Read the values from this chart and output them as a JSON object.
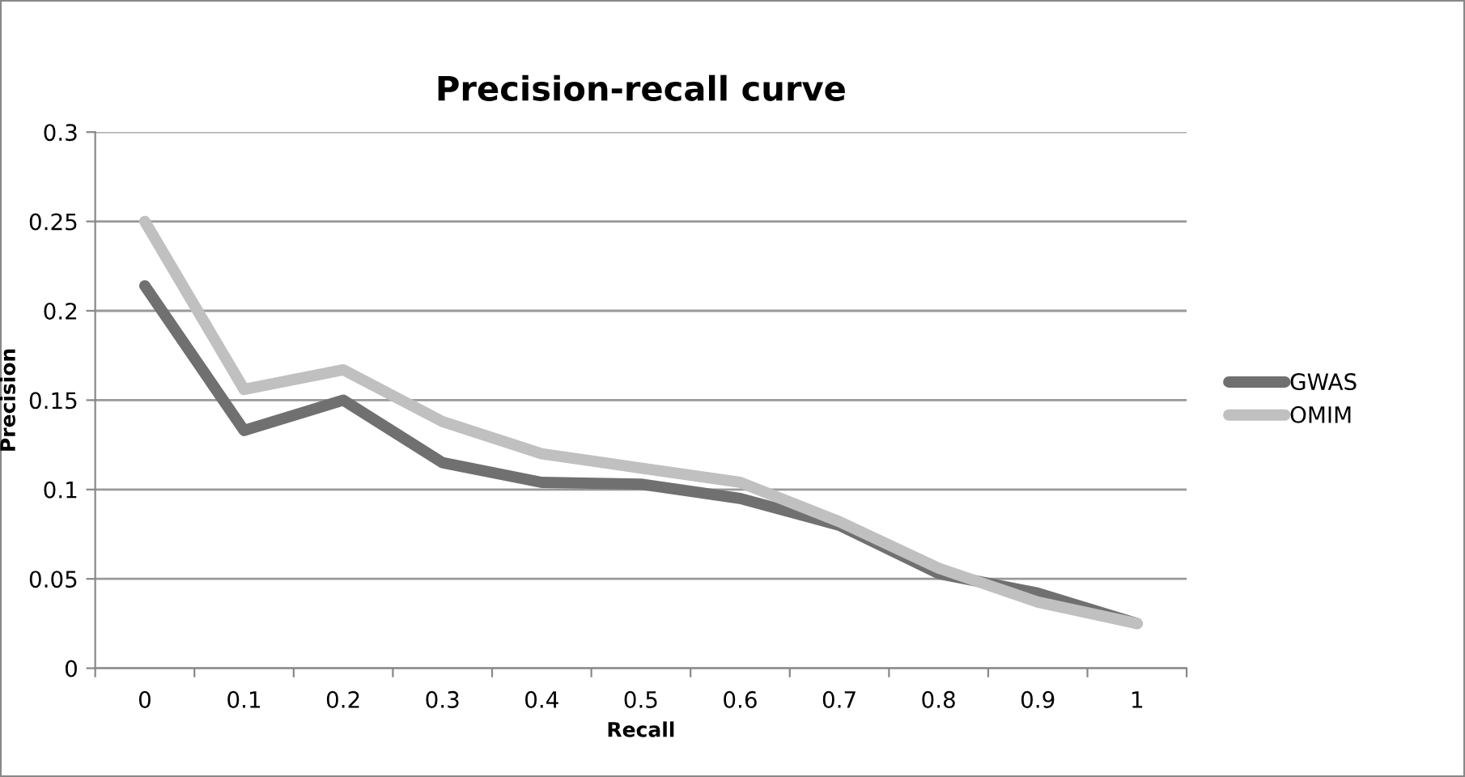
{
  "chart_data": {
    "type": "line",
    "title": "Precision-recall curve",
    "xlabel": "Recall",
    "ylabel": "Precision",
    "categories": [
      "0",
      "0.1",
      "0.2",
      "0.3",
      "0.4",
      "0.5",
      "0.6",
      "0.7",
      "0.8",
      "0.9",
      "1"
    ],
    "series": [
      {
        "name": "GWAS",
        "color": "#707070",
        "values": [
          0.214,
          0.133,
          0.15,
          0.115,
          0.104,
          0.103,
          0.095,
          0.08,
          0.053,
          0.042,
          0.025
        ]
      },
      {
        "name": "OMIM",
        "color": "#c0c0c0",
        "values": [
          0.25,
          0.156,
          0.167,
          0.138,
          0.12,
          0.112,
          0.104,
          0.082,
          0.056,
          0.037,
          0.025
        ]
      }
    ],
    "ylim": [
      0,
      0.3
    ],
    "yticks": [
      0,
      0.05,
      0.1,
      0.15,
      0.2,
      0.25,
      0.3
    ],
    "grid": "y",
    "legend": "right",
    "marker": "none",
    "line_style": "solid"
  }
}
